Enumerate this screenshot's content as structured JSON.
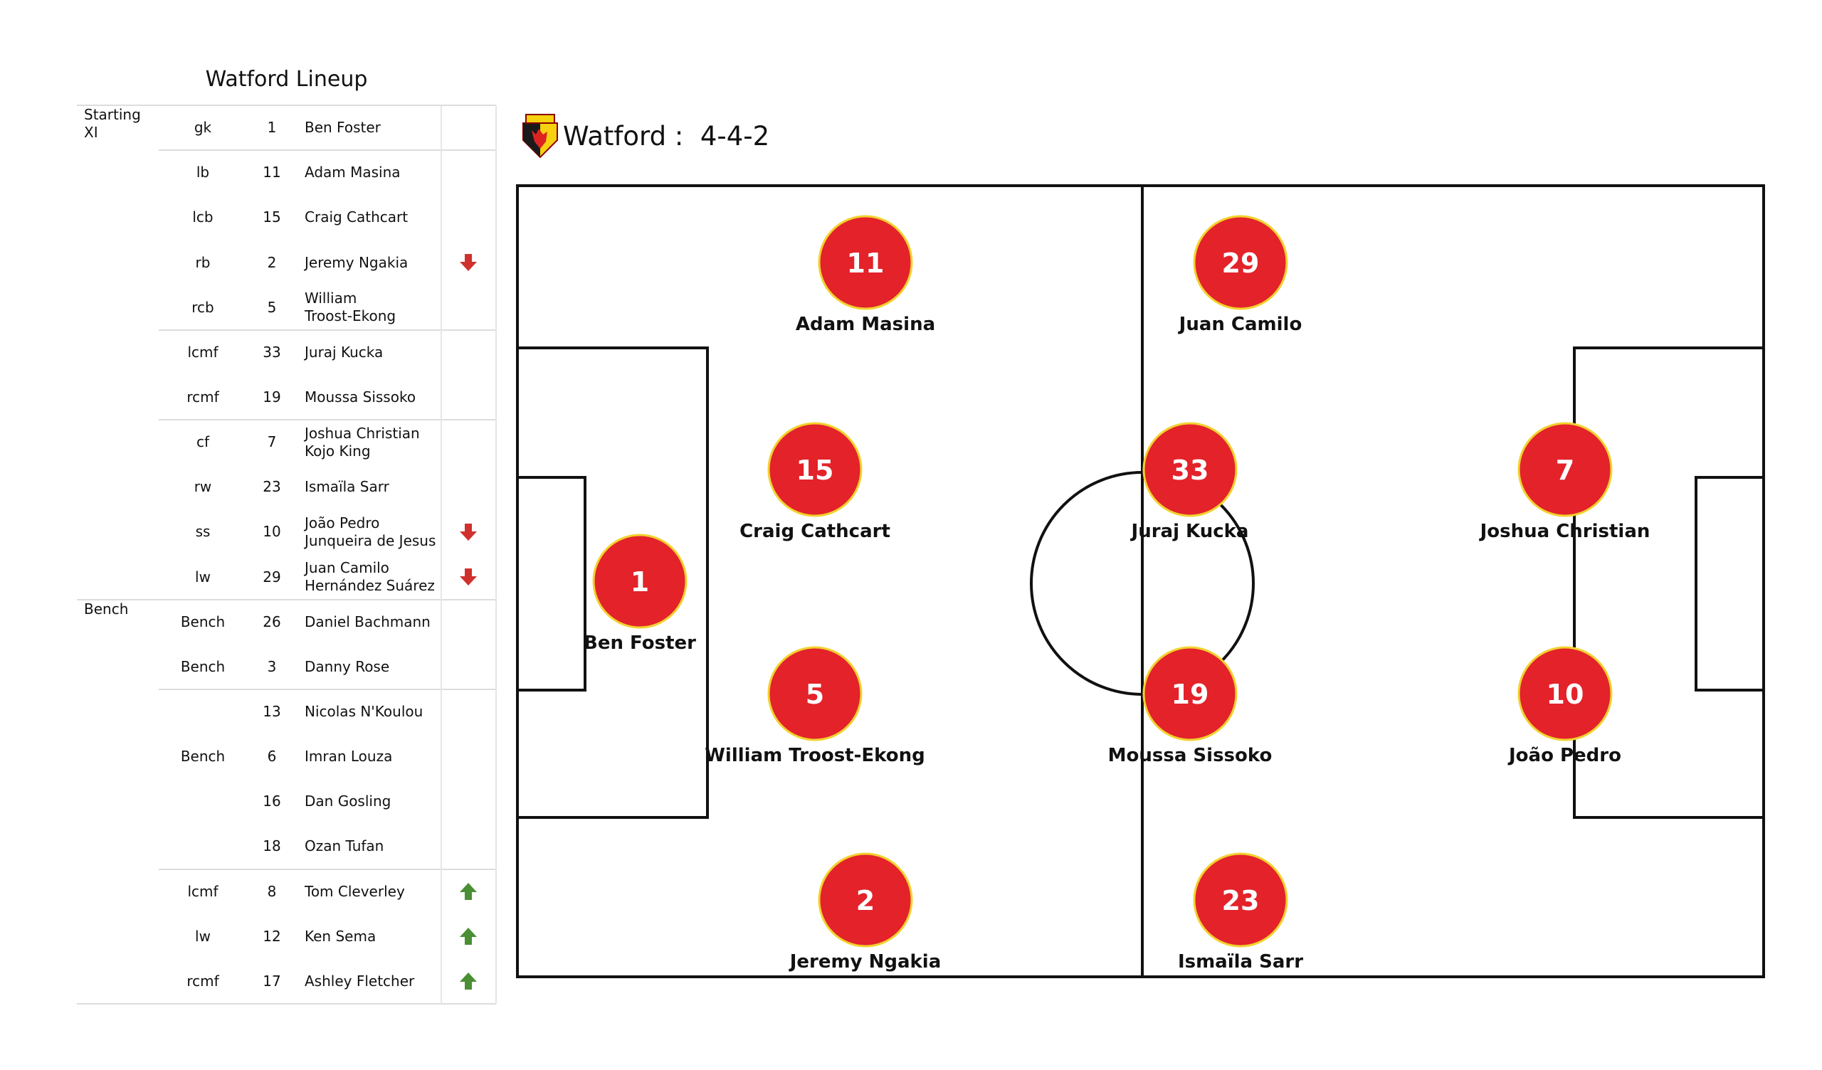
{
  "table": {
    "title": "Watford Lineup",
    "rows": [
      {
        "group": "Starting XI",
        "pos": "gk",
        "num": "1",
        "name": "Ben Foster",
        "sub": ""
      },
      {
        "group": "",
        "pos": "lb",
        "num": "11",
        "name": "Adam Masina",
        "sub": ""
      },
      {
        "group": "",
        "pos": "lcb",
        "num": "15",
        "name": "Craig Cathcart",
        "sub": ""
      },
      {
        "group": "",
        "pos": "rb",
        "num": "2",
        "name": "Jeremy Ngakia",
        "sub": "off"
      },
      {
        "group": "",
        "pos": "rcb",
        "num": "5",
        "name": "William\nTroost-Ekong",
        "sub": ""
      },
      {
        "group": "",
        "pos": "lcmf",
        "num": "33",
        "name": "Juraj Kucka",
        "sub": ""
      },
      {
        "group": "",
        "pos": "rcmf",
        "num": "19",
        "name": "Moussa Sissoko",
        "sub": ""
      },
      {
        "group": "",
        "pos": "cf",
        "num": "7",
        "name": "Joshua Christian\nKojo King",
        "sub": ""
      },
      {
        "group": "",
        "pos": "rw",
        "num": "23",
        "name": "Ismaïla Sarr",
        "sub": ""
      },
      {
        "group": "",
        "pos": "ss",
        "num": "10",
        "name": "João Pedro\nJunqueira de Jesus",
        "sub": "off"
      },
      {
        "group": "",
        "pos": "lw",
        "num": "29",
        "name": "Juan Camilo\nHernández Suárez",
        "sub": "off"
      },
      {
        "group": "Bench",
        "pos": "Bench",
        "num": "26",
        "name": "Daniel Bachmann",
        "sub": ""
      },
      {
        "group": "",
        "pos": "Bench",
        "num": "3",
        "name": "Danny Rose",
        "sub": ""
      },
      {
        "group": "",
        "pos": "",
        "num": "13",
        "name": "Nicolas N'Koulou",
        "sub": ""
      },
      {
        "group": "",
        "pos": "Bench",
        "num": "6",
        "name": "Imran Louza",
        "sub": ""
      },
      {
        "group": "",
        "pos": "",
        "num": "16",
        "name": "Dan Gosling",
        "sub": ""
      },
      {
        "group": "",
        "pos": "",
        "num": "18",
        "name": "Ozan Tufan",
        "sub": ""
      },
      {
        "group": "",
        "pos": "lcmf",
        "num": "8",
        "name": "Tom Cleverley",
        "sub": "on"
      },
      {
        "group": "",
        "pos": "lw",
        "num": "12",
        "name": "Ken Sema",
        "sub": "on"
      },
      {
        "group": "",
        "pos": "rcmf",
        "num": "17",
        "name": "Ashley Fletcher",
        "sub": "on"
      }
    ]
  },
  "formation": {
    "team": "Watford",
    "separator": " :  ",
    "shape": "4-4-2",
    "logo_text": "WATFORD"
  },
  "pitch_players": [
    {
      "role": "gk",
      "num": "1",
      "label": "Ben Foster"
    },
    {
      "role": "lb",
      "num": "11",
      "label": "Adam Masina"
    },
    {
      "role": "lcb",
      "num": "15",
      "label": "Craig Cathcart"
    },
    {
      "role": "rcb",
      "num": "5",
      "label": "William Troost-Ekong"
    },
    {
      "role": "rb",
      "num": "2",
      "label": "Jeremy Ngakia"
    },
    {
      "role": "lw",
      "num": "29",
      "label": "Juan Camilo"
    },
    {
      "role": "lcmf",
      "num": "33",
      "label": "Juraj Kucka"
    },
    {
      "role": "rcmf",
      "num": "19",
      "label": "Moussa Sissoko"
    },
    {
      "role": "rw",
      "num": "23",
      "label": "Ismaïla Sarr"
    },
    {
      "role": "cf",
      "num": "7",
      "label": "Joshua Christian"
    },
    {
      "role": "ss",
      "num": "10",
      "label": "João Pedro"
    }
  ],
  "colors": {
    "player_fill": "#e3222a",
    "player_border": "#f2d22e",
    "sub_off": "#d0312d",
    "sub_on": "#4a8f34",
    "line": "#111111"
  }
}
